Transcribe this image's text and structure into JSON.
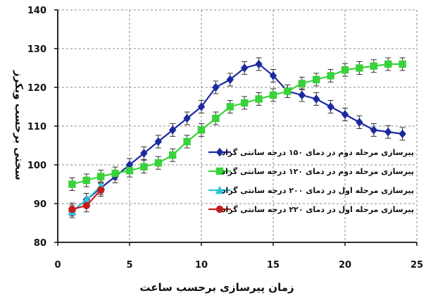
{
  "chart_data": {
    "type": "line",
    "xlabel": "زمان پیرسازی برحسب ساعت",
    "ylabel": "سختی برحسب ویکرز",
    "xlim": [
      0,
      25
    ],
    "ylim": [
      80,
      140
    ],
    "x_ticks": [
      "0",
      "5",
      "10",
      "15",
      "20",
      "25"
    ],
    "y_ticks": [
      "80",
      "90",
      "100",
      "110",
      "120",
      "130",
      "140"
    ],
    "grid": true,
    "legend_position": "center-right",
    "series": [
      {
        "name": "پیرسازی مرحله دوم در دمای ۱۵۰ درجه سانتی گراد",
        "color": "#1c2aa0",
        "marker": "diamond",
        "x": [
          1,
          2,
          3,
          4,
          5,
          6,
          7,
          8,
          9,
          10,
          11,
          12,
          13,
          14,
          15,
          16,
          17,
          18,
          19,
          20,
          21,
          22,
          23,
          24
        ],
        "y": [
          88,
          91,
          94,
          97,
          100,
          103,
          106,
          109,
          112,
          115,
          120,
          122,
          125,
          126,
          123,
          119,
          118,
          117,
          115,
          113,
          111,
          109,
          108.5,
          108
        ]
      },
      {
        "name": "پیرسازی مرحله دوم در دمای ۱۲۰ درجه سانتی گراد",
        "color": "#38d23a",
        "marker": "square",
        "x": [
          1,
          2,
          3,
          4,
          5,
          6,
          7,
          8,
          9,
          10,
          11,
          12,
          13,
          14,
          15,
          16,
          17,
          18,
          19,
          20,
          21,
          22,
          23,
          24
        ],
        "y": [
          95,
          96,
          97,
          97.8,
          98.5,
          99.5,
          100.5,
          102.5,
          106,
          109,
          112,
          115,
          116,
          117,
          118,
          119,
          121,
          122,
          123,
          124.5,
          125,
          125.5,
          126,
          126
        ]
      },
      {
        "name": "پیرسازی مرحله اول در دمای ۲۰۰ درجه سانتی گراد",
        "color": "#2ec4d6",
        "marker": "triangle",
        "x": [
          1,
          2,
          3
        ],
        "y": [
          88,
          91,
          94.5
        ]
      },
      {
        "name": "پیرسازی مرحله اول در دمای ۲۲۰ درجه سانتی گراد",
        "color": "#c41c1c",
        "marker": "circle",
        "x": [
          1,
          2,
          3
        ],
        "y": [
          88.5,
          89.5,
          93.5
        ]
      }
    ]
  }
}
